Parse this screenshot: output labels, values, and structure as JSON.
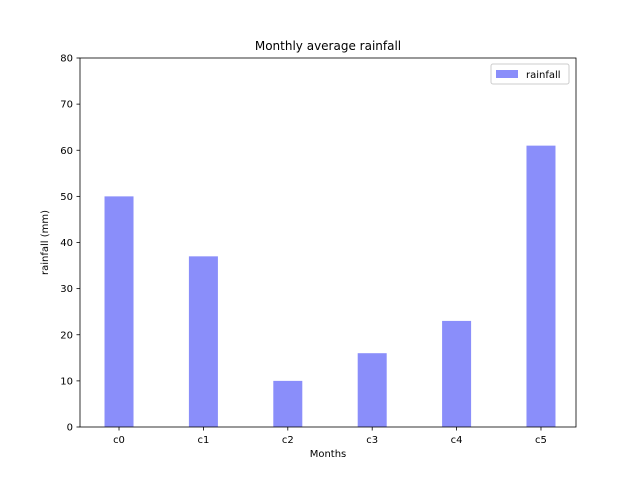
{
  "chart_data": {
    "type": "bar",
    "title": "Monthly average rainfall",
    "xlabel": "Months",
    "ylabel": "rainfall (mm)",
    "categories": [
      "c0",
      "c1",
      "c2",
      "c3",
      "c4",
      "c5"
    ],
    "series": [
      {
        "name": "rainfall",
        "values": [
          50,
          37,
          10,
          16,
          23,
          61
        ],
        "color": "#8A8EFA"
      }
    ],
    "ylim": [
      0,
      80
    ],
    "yticks": [
      0,
      10,
      20,
      30,
      40,
      50,
      60,
      70,
      80
    ],
    "grid": false,
    "legend": "top-right"
  }
}
